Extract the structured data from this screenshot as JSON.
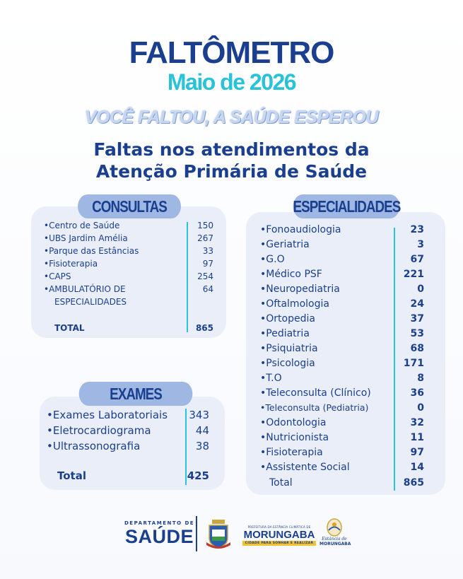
{
  "header": {
    "title": "FALTÔMETRO",
    "subtitle": "Maio de 2026",
    "slogan": "VOCÊ FALTOU, A SAÚDE ESPEROU",
    "heading_line1": "Faltas nos atendimentos da",
    "heading_line2": "Atenção Primária de Saúde"
  },
  "consultas": {
    "label": "CONSULTAS",
    "items": [
      {
        "name": "Centro de Saúde",
        "value": "150"
      },
      {
        "name": "UBS Jardim Amélia",
        "value": "267"
      },
      {
        "name": "Parque das Estâncias",
        "value": "33"
      },
      {
        "name": "Fisioterapia",
        "value": "97"
      },
      {
        "name": "CAPS",
        "value": "254"
      },
      {
        "name": "AMBULATÓRIO DE",
        "value": "64"
      }
    ],
    "item_continuation": "ESPECIALIDADES",
    "total_label": "TOTAL",
    "total_value": "865"
  },
  "exames": {
    "label": "EXAMES",
    "items": [
      {
        "name": "Exames Laboratoriais",
        "value": "343"
      },
      {
        "name": "Eletrocardiograma",
        "value": "44"
      },
      {
        "name": "Ultrassonografia",
        "value": "38"
      }
    ],
    "total_label": "Total",
    "total_value": "425"
  },
  "especialidades": {
    "label": "ESPECIALIDADES",
    "items": [
      {
        "name": "Fonoaudiologia",
        "value": "23"
      },
      {
        "name": "Geriatria",
        "value": "3"
      },
      {
        "name": "G.O",
        "value": "67"
      },
      {
        "name": "Médico PSF",
        "value": "221"
      },
      {
        "name": "Neuropediatria",
        "value": "0"
      },
      {
        "name": "Oftalmologia",
        "value": "24"
      },
      {
        "name": "Ortopedia",
        "value": "37"
      },
      {
        "name": "Pediatria",
        "value": "53"
      },
      {
        "name": "Psiquiatria",
        "value": "68"
      },
      {
        "name": "Psicologia",
        "value": "171"
      },
      {
        "name": "T.O",
        "value": "8"
      },
      {
        "name": "Teleconsulta (Clínico)",
        "value": "36"
      },
      {
        "name": "Teleconsulta (Pediatria)",
        "value": "0"
      },
      {
        "name": "Odontologia",
        "value": "32"
      },
      {
        "name": "Nutricionista",
        "value": "11"
      },
      {
        "name": "Fisioterapia",
        "value": "97"
      },
      {
        "name": "Assistente Social",
        "value": "14"
      }
    ],
    "total_label": "Total",
    "total_value": "865"
  },
  "footer": {
    "dept_small": "DEPARTAMENTO DE",
    "dept_big": "SAÚDE",
    "pref_small": "PREFEITURA DA ESTÂNCIA CLIMÁTICA DE",
    "pref_big": "MORUNGABA",
    "pref_tag": "CIDADE PARA SONHAR E REALIZAR",
    "estancia_line1": "Estância de",
    "estancia_line2": "MORUNGABA"
  },
  "colors": {
    "navy": "#1b3f8f",
    "cyan": "#29c3d9",
    "card": "#e9eef8",
    "pill": "#9fb8e3"
  }
}
